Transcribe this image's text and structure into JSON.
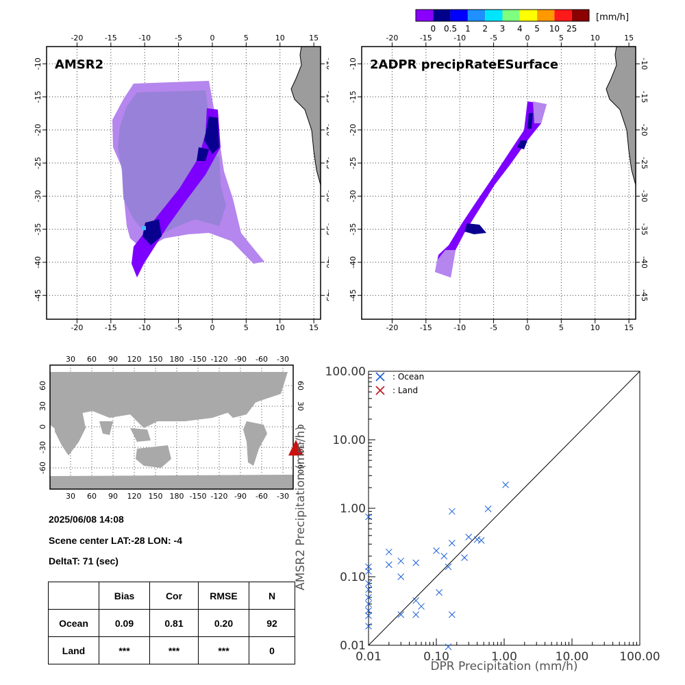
{
  "colorbar": {
    "unit": "[mm/h]",
    "colors": [
      "#8a00ff",
      "#00008b",
      "#0000ff",
      "#1e90ff",
      "#00e5ff",
      "#7fff7f",
      "#ffff00",
      "#ff9900",
      "#ff1a1a",
      "#8b0000"
    ],
    "labels": [
      "0",
      "0.5",
      "1",
      "2",
      "3",
      "4",
      "5",
      "10",
      "25"
    ]
  },
  "maps": [
    {
      "title": "AMSR2",
      "lon_ticks": [
        -20,
        -15,
        -10,
        -5,
        0,
        5,
        10,
        15
      ],
      "lat_ticks": [
        -10,
        -15,
        -20,
        -25,
        -30,
        -35,
        -40,
        -45
      ]
    },
    {
      "title": "2ADPR precipRateESurface",
      "lon_ticks": [
        -20,
        -15,
        -10,
        -5,
        0,
        5,
        10,
        15
      ],
      "lat_ticks": [
        -10,
        -15,
        -20,
        -25,
        -30,
        -35,
        -40,
        -45
      ]
    }
  ],
  "world_map": {
    "lon_ticks": [
      "30",
      "60",
      "90",
      "120",
      "150",
      "180",
      "-150",
      "-120",
      "-90",
      "-60",
      "-30"
    ],
    "lat_ticks": [
      "60",
      "30",
      "0",
      "-30",
      "-60"
    ]
  },
  "info": {
    "datetime": "2025/06/08 14:08",
    "scene_center": "Scene center LAT:-28   LON:  -4",
    "deltat": "DeltaT:   71 (sec)"
  },
  "stats_table": {
    "headers": [
      "",
      "Bias",
      "Cor",
      "RMSE",
      "N"
    ],
    "rows": [
      {
        "label": "Ocean",
        "values": [
          "0.09",
          "0.81",
          "0.20",
          "92"
        ]
      },
      {
        "label": "Land",
        "values": [
          "***",
          "***",
          "***",
          "0"
        ]
      }
    ]
  },
  "chart_data": {
    "type": "scatter",
    "xlabel": "DPR Precipitation (mm/h)",
    "ylabel": "AMSR2 Precipitation (mm/h)",
    "xscale": "log",
    "yscale": "log",
    "xlim": [
      0.01,
      100
    ],
    "ylim": [
      0.01,
      100
    ],
    "tick_labels": [
      "0.01",
      "0.10",
      "1.00",
      "10.00",
      "100.00"
    ],
    "one_to_one_line": true,
    "legend": "top-left",
    "series": [
      {
        "name": ": Ocean",
        "color": "#1a5fd6",
        "marker": "x",
        "points": [
          [
            0.01,
            0.75
          ],
          [
            0.01,
            0.14
          ],
          [
            0.01,
            0.12
          ],
          [
            0.01,
            0.08
          ],
          [
            0.01,
            0.065
          ],
          [
            0.01,
            0.05
          ],
          [
            0.01,
            0.04
          ],
          [
            0.01,
            0.032
          ],
          [
            0.01,
            0.027
          ],
          [
            0.01,
            0.019
          ],
          [
            0.02,
            0.23
          ],
          [
            0.02,
            0.15
          ],
          [
            0.03,
            0.17
          ],
          [
            0.03,
            0.1
          ],
          [
            0.03,
            0.028
          ],
          [
            0.05,
            0.16
          ],
          [
            0.05,
            0.045
          ],
          [
            0.05,
            0.028
          ],
          [
            0.06,
            0.037
          ],
          [
            0.1,
            0.24
          ],
          [
            0.11,
            0.059
          ],
          [
            0.13,
            0.2
          ],
          [
            0.15,
            0.14
          ],
          [
            0.15,
            0.0095
          ],
          [
            0.17,
            0.9
          ],
          [
            0.17,
            0.31
          ],
          [
            0.17,
            0.028
          ],
          [
            0.26,
            0.19
          ],
          [
            0.3,
            0.38
          ],
          [
            0.4,
            0.35
          ],
          [
            0.46,
            0.34
          ],
          [
            0.58,
            0.98
          ],
          [
            1.05,
            2.2
          ]
        ]
      },
      {
        "name": ": Land",
        "color": "#c0141c",
        "marker": "x",
        "points": []
      }
    ]
  }
}
